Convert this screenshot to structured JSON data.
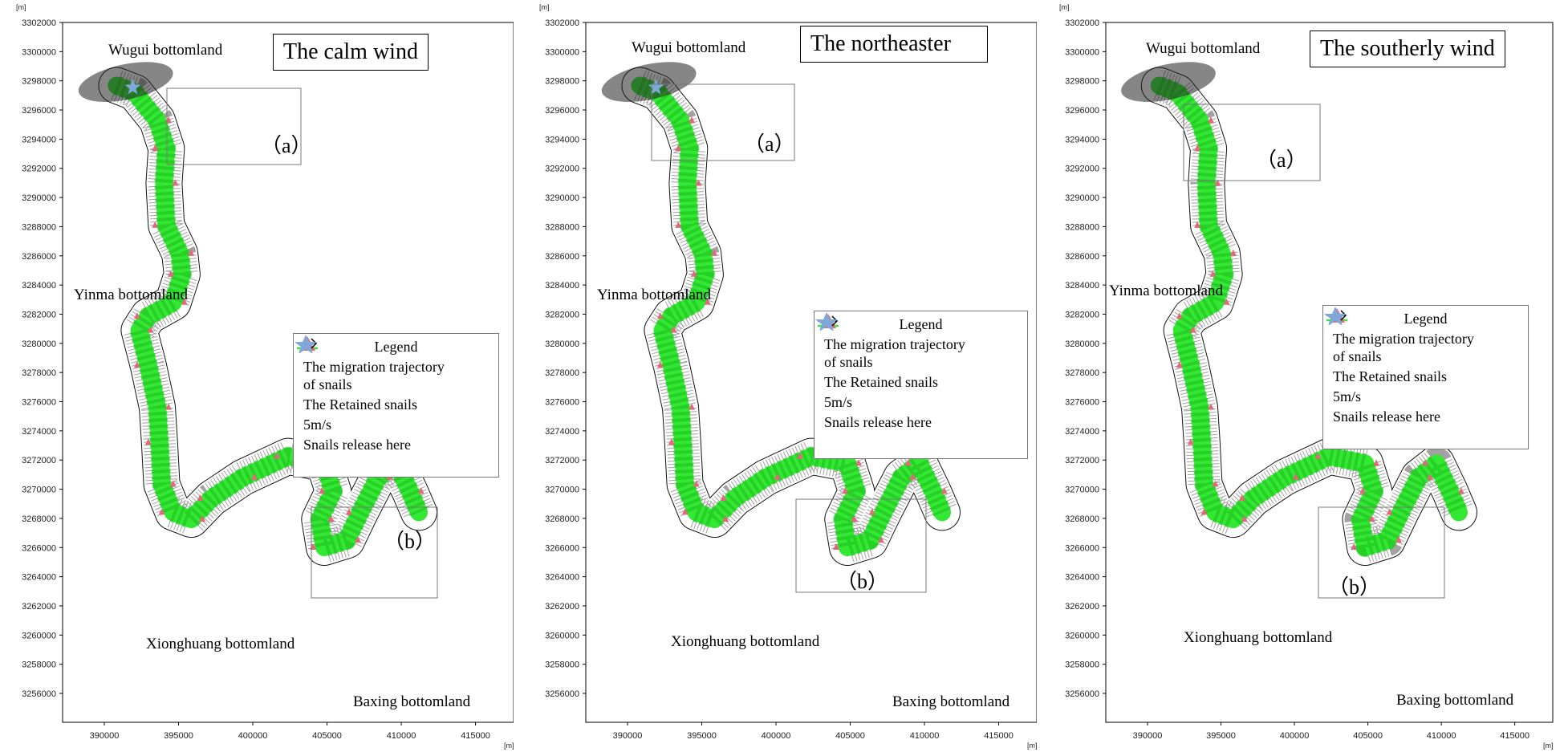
{
  "axis": {
    "unit": "[m]",
    "y_ticks": [
      "3302000",
      "3300000",
      "3298000",
      "3296000",
      "3294000",
      "3292000",
      "3290000",
      "3288000",
      "3286000",
      "3284000",
      "3282000",
      "3280000",
      "3278000",
      "3276000",
      "3274000",
      "3272000",
      "3270000",
      "3268000",
      "3266000",
      "3264000",
      "3262000",
      "3260000",
      "3258000",
      "3256000"
    ],
    "x_ticks": [
      "390000",
      "395000",
      "400000",
      "405000",
      "410000",
      "415000"
    ]
  },
  "places": {
    "wugui": "Wugui  bottomland",
    "yinma": "Yinma bottomland",
    "xionghuang": "Xionghuang bottomland",
    "baxing": "Baxing bottomland"
  },
  "insets": {
    "a": "（a）",
    "b": "（b）"
  },
  "legend": {
    "title": "Legend",
    "trajectory_line1": "The migration trajectory",
    "trajectory_line2": "of snails",
    "retained": "The Retained snails",
    "arrow": "5m/s",
    "release": "Snails release here"
  },
  "panels": [
    {
      "title": "The calm wind"
    },
    {
      "title": "The northeaster"
    },
    {
      "title": "The southerly wind"
    }
  ],
  "colors": {
    "trajectory": "#33e833",
    "retained": "#e06a7a",
    "release_star": "#7fa7d8",
    "outline": "#000000"
  }
}
